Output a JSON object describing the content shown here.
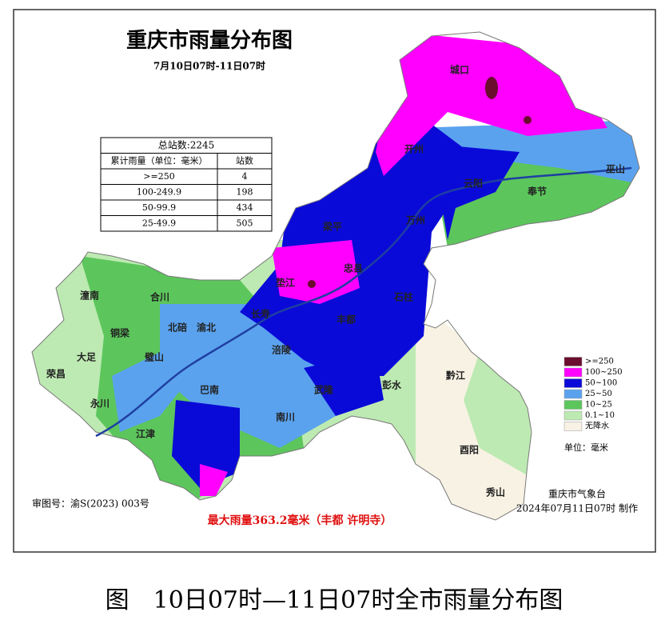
{
  "title": "重庆市雨量分布图",
  "subtitle": "7月10日07时-11日07时",
  "table": {
    "header": "总站数:2245",
    "columns": [
      "累计雨量（单位：毫米）",
      "站数"
    ],
    "rows": [
      [
        ">=250",
        "4"
      ],
      [
        "100-249.9",
        "198"
      ],
      [
        "50-99.9",
        "434"
      ],
      [
        "25-49.9",
        "505"
      ]
    ]
  },
  "legend": {
    "items": [
      {
        "label": ">=250",
        "color": "#6b0d2e"
      },
      {
        "label": "100~250",
        "color": "#ff00ff"
      },
      {
        "label": "50~100",
        "color": "#0a0ad8"
      },
      {
        "label": "25~50",
        "color": "#5aa2ee"
      },
      {
        "label": "10~25",
        "color": "#5cc65c"
      },
      {
        "label": "0.1~10",
        "color": "#bdeab2"
      },
      {
        "label": "无降水",
        "color": "#f8f2e4"
      }
    ],
    "unit": "单位：毫米"
  },
  "places": [
    "城口",
    "开州",
    "巫山",
    "云阳",
    "奉节",
    "万州",
    "梁平",
    "忠县",
    "垫江",
    "石柱",
    "丰都",
    "长寿",
    "涪陵",
    "合川",
    "潼南",
    "北碚",
    "渝北",
    "铜梁",
    "大足",
    "璧山",
    "荣昌",
    "永川",
    "巴南",
    "武隆",
    "彭水",
    "黔江",
    "南川",
    "江津",
    "酉阳",
    "秀山"
  ],
  "review_number": "审图号：渝S(2023) 003号",
  "max_rain": "最大雨量363.2毫米（丰都 许明寺）",
  "issuer": "重庆市气象台",
  "issued": "2024年07月11日07时 制作",
  "caption": "图　10日07时—11日07时全市雨量分布图"
}
